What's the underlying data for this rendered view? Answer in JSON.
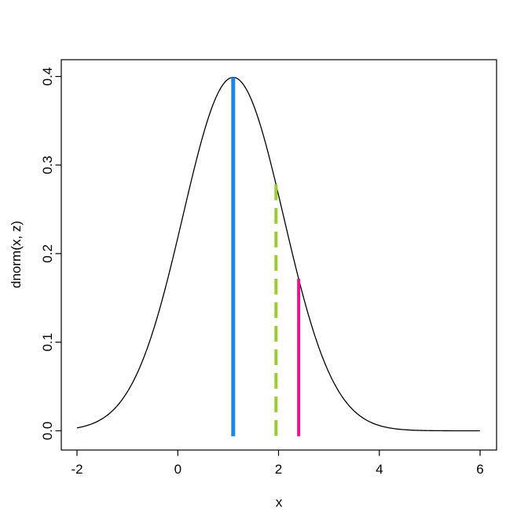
{
  "figure": {
    "background_color": "#ffffff",
    "plot_border_color": "#000000"
  },
  "chart_data": {
    "type": "line",
    "title": "",
    "xlabel": "x",
    "ylabel": "dnorm(x, z)",
    "xlim": [
      -2,
      6
    ],
    "ylim": [
      0,
      0.4
    ],
    "grid": false,
    "legend": null,
    "x_ticks": {
      "values": [
        -2,
        0,
        2,
        4,
        6
      ],
      "labels": [
        "-2",
        "0",
        "2",
        "4",
        "6"
      ]
    },
    "y_ticks": {
      "values": [
        0.0,
        0.1,
        0.2,
        0.3,
        0.4
      ],
      "labels": [
        "0.0",
        "0.1",
        "0.2",
        "0.3",
        "0.4"
      ]
    },
    "curve": {
      "name": "normal-density-curve",
      "distribution": "normal",
      "mean": 1.1,
      "sd": 1,
      "x_range": [
        -2,
        6
      ],
      "peak_value": 0.3989,
      "color": "#000000",
      "line_width": 1.3
    },
    "vlines": [
      {
        "name": "blue-vline",
        "x": 1.1,
        "y0": 0,
        "y1": 0.3989,
        "color": "#1C86EE",
        "style": "solid",
        "width": 5
      },
      {
        "name": "green-dashed-vline",
        "x": 1.95,
        "y0": 0,
        "y1": 0.278,
        "color": "#9ACD32",
        "style": "dashed",
        "width": 4
      },
      {
        "name": "pink-vline",
        "x": 2.4,
        "y0": 0,
        "y1": 0.1714,
        "color": "#EE1289",
        "style": "solid",
        "width": 4
      }
    ]
  }
}
